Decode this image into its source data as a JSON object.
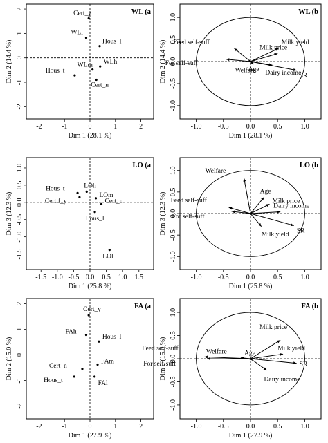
{
  "chart_data": [
    {
      "id": "wl_a",
      "type": "scatter",
      "title": "WL (a",
      "xlabel": "Dim 1 (28.1 %)",
      "ylabel": "Dim 2 (14.4 %)",
      "xlim": [
        -2.5,
        2.5
      ],
      "ylim": [
        -2.5,
        2.2
      ],
      "xticks": [
        -2,
        -1,
        0,
        1,
        2
      ],
      "yticks": [
        -2,
        -1,
        0,
        1,
        2
      ],
      "points": [
        {
          "label": "Cert_y",
          "x": -0.05,
          "y": 1.62
        },
        {
          "label": "WLl",
          "x": -0.15,
          "y": 0.82
        },
        {
          "label": "Hous_l",
          "x": 0.38,
          "y": 0.48
        },
        {
          "label": "WLm",
          "x": 0.1,
          "y": -0.48
        },
        {
          "label": "WLh",
          "x": 0.4,
          "y": -0.35
        },
        {
          "label": "Hous_t",
          "x": -0.6,
          "y": -0.72
        },
        {
          "label": "Cert_n",
          "x": 0.25,
          "y": -0.9
        }
      ]
    },
    {
      "id": "wl_b",
      "type": "scatter",
      "title": "WL (b",
      "xlabel": "Dim 1 (28.1 %)",
      "ylabel": "Dim 2 (14.4 %)",
      "xlim": [
        -1.3,
        1.3
      ],
      "ylim": [
        -1.3,
        1.3
      ],
      "xticks": [
        -1.0,
        -0.5,
        0.0,
        0.5,
        1.0
      ],
      "yticks": [
        -1.0,
        -0.5,
        0.0,
        0.5,
        1.0
      ],
      "circle": true,
      "vectors": [
        {
          "label": "Milk price",
          "x": 0.5,
          "y": 0.18
        },
        {
          "label": "Milk yield",
          "x": 0.52,
          "y": 0.3
        },
        {
          "label": "Feed self-suff",
          "x": -0.3,
          "y": 0.3
        },
        {
          "label": "For self-suff",
          "x": -0.45,
          "y": 0.05
        },
        {
          "label": "Welfare",
          "x": 0.02,
          "y": -0.02
        },
        {
          "label": "Age",
          "x": 0.06,
          "y": -0.06
        },
        {
          "label": "Dairy income",
          "x": 0.4,
          "y": -0.08
        },
        {
          "label": "SR",
          "x": 0.85,
          "y": -0.2
        }
      ]
    },
    {
      "id": "lo_a",
      "type": "scatter",
      "title": "LO (a",
      "xlabel": "Dim 1 (25.8 %)",
      "ylabel": "Dim 3 (12.3 %)",
      "xlim": [
        -1.95,
        1.95
      ],
      "ylim": [
        -1.95,
        1.3
      ],
      "xticks": [
        -1.5,
        -1.0,
        -0.5,
        0.0,
        0.5,
        1.0,
        1.5
      ],
      "yticks": [
        -1.5,
        -1.0,
        -0.5,
        0.0,
        0.5,
        1.0
      ],
      "points": [
        {
          "label": "LOh",
          "x": -0.1,
          "y": 0.31
        },
        {
          "label": "Hous_t",
          "x": -0.38,
          "y": 0.27
        },
        {
          "label": "LOm",
          "x": 0.18,
          "y": 0.12
        },
        {
          "label": "Certif_y",
          "x": -0.32,
          "y": 0.15
        },
        {
          "label": "Cert_n",
          "x": 0.35,
          "y": -0.05
        },
        {
          "label": "Hous_l",
          "x": 0.15,
          "y": -0.28
        },
        {
          "label": "LOl",
          "x": 0.6,
          "y": -1.38
        }
      ]
    },
    {
      "id": "lo_b",
      "type": "scatter",
      "title": "LO (b",
      "xlabel": "Dim 1 (25.8 %)",
      "ylabel": "Dim 3 (12.3 %)",
      "xlim": [
        -1.3,
        1.3
      ],
      "ylim": [
        -1.3,
        1.3
      ],
      "xticks": [
        -1.0,
        -0.5,
        0.0,
        0.5,
        1.0
      ],
      "yticks": [
        -1.0,
        -0.5,
        0.0,
        0.5,
        1.0
      ],
      "circle": true,
      "vectors": [
        {
          "label": "Welfare",
          "x": -0.12,
          "y": 0.82
        },
        {
          "label": "Age",
          "x": 0.25,
          "y": 0.38
        },
        {
          "label": "Milk price",
          "x": 0.35,
          "y": 0.22
        },
        {
          "label": "Dairy income",
          "x": 0.55,
          "y": 0.04
        },
        {
          "label": "Feed self-suff",
          "x": -0.4,
          "y": 0.14
        },
        {
          "label": "For self-suff",
          "x": -0.35,
          "y": 0.05
        },
        {
          "label": "Milk yield",
          "x": 0.2,
          "y": -0.3
        },
        {
          "label": "SR",
          "x": 0.8,
          "y": -0.28
        }
      ]
    },
    {
      "id": "fa_a",
      "type": "scatter",
      "title": "FA (a",
      "xlabel": "Dim 1 (27.9 %)",
      "ylabel": "Dim 2 (15.0 %)",
      "xlim": [
        -2.5,
        2.5
      ],
      "ylim": [
        -2.5,
        2.2
      ],
      "xticks": [
        -2,
        -1,
        0,
        1,
        2
      ],
      "yticks": [
        -2,
        -1,
        0,
        1,
        2
      ],
      "points": [
        {
          "label": "Cert_y",
          "x": -0.05,
          "y": 1.55
        },
        {
          "label": "FAh",
          "x": -0.15,
          "y": 0.78
        },
        {
          "label": "Hous_l",
          "x": 0.35,
          "y": 0.52
        },
        {
          "label": "FAm",
          "x": 0.3,
          "y": -0.38
        },
        {
          "label": "Cert_n",
          "x": -0.3,
          "y": -0.55
        },
        {
          "label": "Hous_t",
          "x": -0.62,
          "y": -0.85
        },
        {
          "label": "FAl",
          "x": 0.18,
          "y": -0.85
        }
      ]
    },
    {
      "id": "fa_b",
      "type": "scatter",
      "title": "FA (b",
      "xlabel": "Dim 1 (27.9 %)",
      "ylabel": "Dim 2 (15.0 %)",
      "xlim": [
        -1.3,
        1.3
      ],
      "ylim": [
        -1.3,
        1.3
      ],
      "xticks": [
        -1.0,
        -0.5,
        0.0,
        0.5,
        1.0
      ],
      "yticks": [
        -1.0,
        -0.5,
        0.0,
        0.5,
        1.0
      ],
      "circle": true,
      "vectors": [
        {
          "label": "Milk price",
          "x": 0.55,
          "y": 0.4
        },
        {
          "label": "Milk yield",
          "x": 0.6,
          "y": 0.1
        },
        {
          "label": "Feed self-suff",
          "x": -0.85,
          "y": 0.04
        },
        {
          "label": "Welfare",
          "x": -0.18,
          "y": 0.02
        },
        {
          "label": "For self-suff",
          "x": -0.8,
          "y": 0.0
        },
        {
          "label": "Age",
          "x": 0.04,
          "y": -0.04
        },
        {
          "label": "SR",
          "x": 0.85,
          "y": -0.1
        },
        {
          "label": "Dairy income",
          "x": 0.3,
          "y": -0.25
        }
      ]
    }
  ]
}
